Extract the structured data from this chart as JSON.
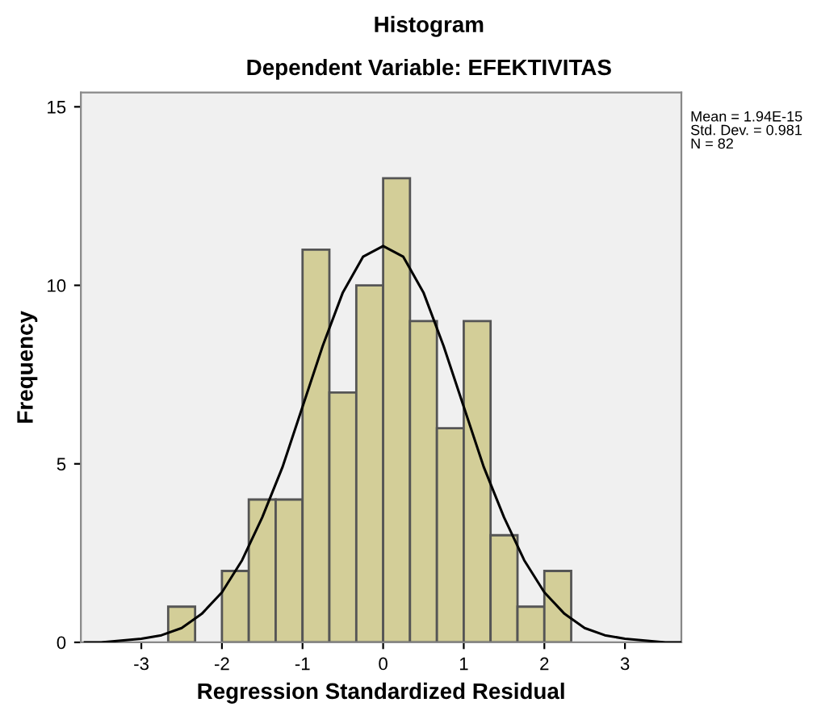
{
  "chart_data": {
    "type": "histogram",
    "title": "Histogram",
    "subtitle": "Dependent Variable: EFEKTIVITAS",
    "xlabel": "Regression Standardized Residual",
    "ylabel": "Frequency",
    "bins": [
      -2.667,
      -2.333,
      -2,
      -1.667,
      -1.333,
      -1,
      -0.667,
      -0.333,
      0,
      0.333,
      0.667,
      1,
      1.333,
      1.667,
      2,
      2.333
    ],
    "values": [
      1,
      0,
      2,
      4,
      4,
      11,
      7,
      10,
      13,
      9,
      6,
      9,
      3,
      1,
      2
    ],
    "color": "#d3ce98",
    "series": [
      {
        "type": "line",
        "color": "#000000",
        "x": [
          -3.7,
          -3.5,
          -3,
          -2.75,
          -2.5,
          -2.25,
          -2,
          -1.75,
          -1.5,
          -1.25,
          -1,
          -0.75,
          -0.5,
          -0.25,
          0,
          0.25,
          0.5,
          0.75,
          1,
          1.25,
          1.5,
          1.75,
          2,
          2.25,
          2.5,
          2.75,
          3,
          3.5,
          3.7
        ],
        "values": [
          0,
          0,
          0.1,
          0.2,
          0.4,
          0.8,
          1.4,
          2.3,
          3.5,
          4.9,
          6.6,
          8.3,
          9.8,
          10.8,
          11.1,
          10.8,
          9.8,
          8.3,
          6.6,
          4.9,
          3.5,
          2.3,
          1.4,
          0.8,
          0.4,
          0.2,
          0.1,
          0,
          0
        ]
      }
    ],
    "xlim": [
      -3.75,
      3.7
    ],
    "xticks": [
      -3,
      -2,
      -1,
      0,
      1,
      2,
      3
    ],
    "ylim": [
      0,
      15.4
    ],
    "yticks": [
      0,
      5,
      10,
      15
    ],
    "grid": false,
    "legend": false,
    "annotations": [
      "Mean = 1.94E-15\nStd. Dev. = 0.981\nN = 82"
    ]
  }
}
